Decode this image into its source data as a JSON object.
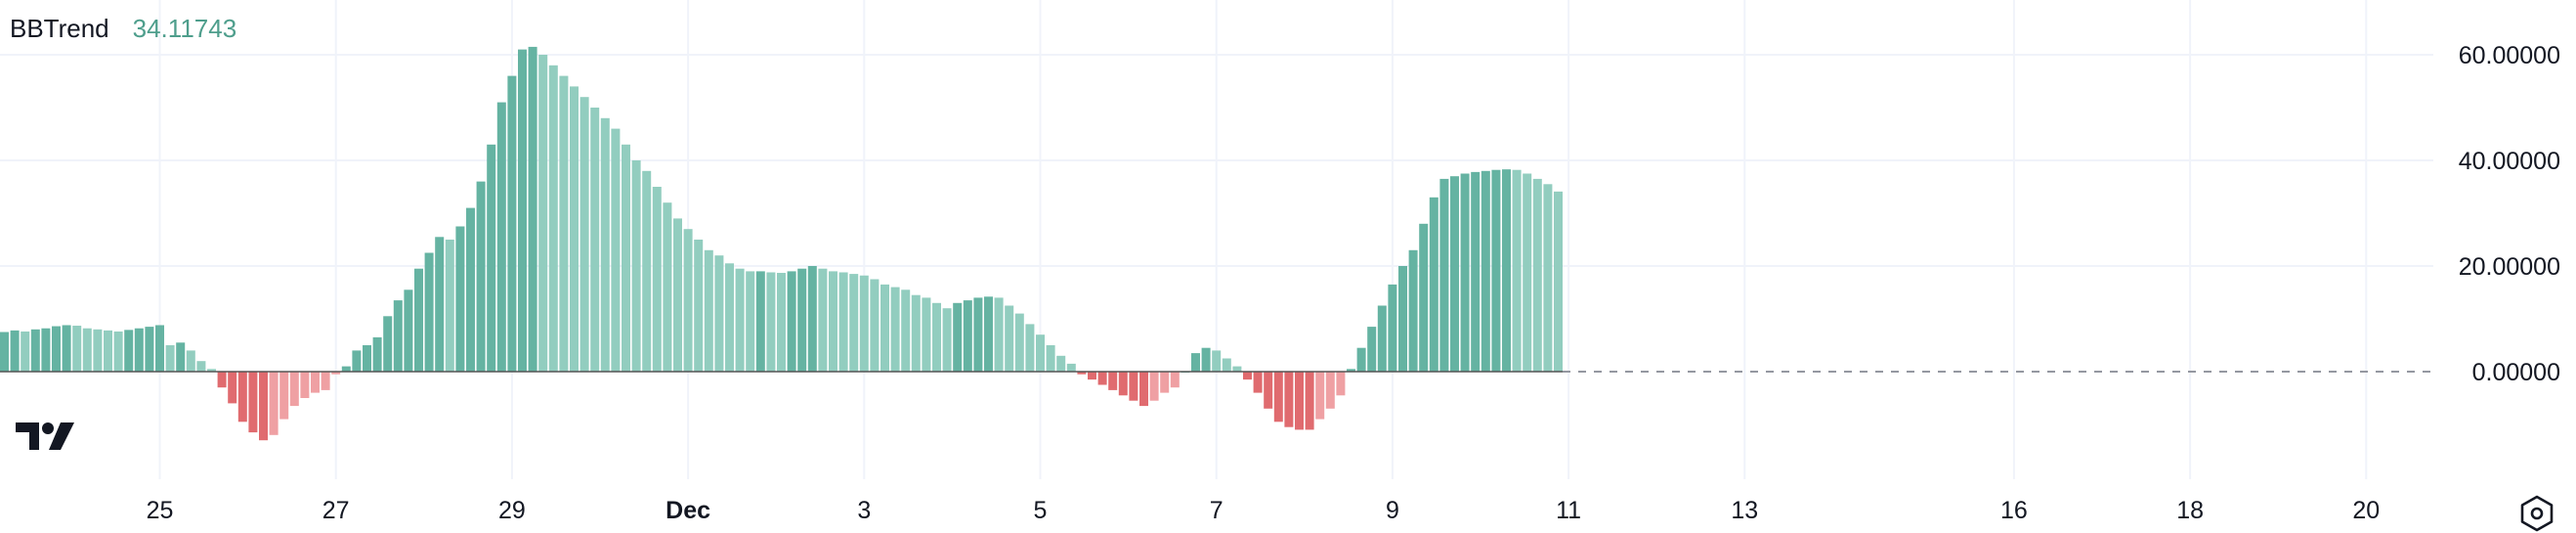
{
  "legend": {
    "name": "BBTrend",
    "value": "34.11743"
  },
  "colors": {
    "up_strong": "#65b3a2",
    "up_weak": "#92cdbf",
    "down_strong": "#e06b6f",
    "down_weak": "#efa0a3",
    "grid": "#f0f3fa",
    "text": "#131722",
    "zero_line": "#9598a1"
  },
  "chart_data": {
    "type": "bar",
    "y_ticks": [
      "60.00000",
      "40.00000",
      "20.00000",
      "0.00000"
    ],
    "ylim": [
      -15,
      66
    ],
    "x_ticks": [
      {
        "label": "25",
        "index": 15
      },
      {
        "label": "27",
        "index": 32
      },
      {
        "label": "29",
        "index": 49
      },
      {
        "label": "Dec",
        "index": 66,
        "bold": true
      },
      {
        "label": "3",
        "index": 83
      },
      {
        "label": "5",
        "index": 100
      },
      {
        "label": "7",
        "index": 117
      },
      {
        "label": "9",
        "index": 134
      },
      {
        "label": "11",
        "index": 151
      },
      {
        "label": "13",
        "index": 168
      },
      {
        "label": "16",
        "index": 194
      },
      {
        "label": "18",
        "index": 211
      },
      {
        "label": "20",
        "index": 228
      }
    ],
    "values": [
      7.5,
      7.8,
      7.6,
      8.0,
      8.2,
      8.6,
      8.8,
      8.7,
      8.2,
      8.0,
      7.8,
      7.6,
      7.9,
      8.2,
      8.5,
      8.8,
      5.0,
      5.5,
      4.0,
      2.0,
      0.5,
      -3,
      -6,
      -9.5,
      -11.5,
      -13,
      -12,
      -9,
      -6.5,
      -5,
      -4,
      -3.5,
      -0.5,
      1.0,
      4.0,
      5.0,
      6.5,
      10.5,
      13.5,
      15.5,
      19.5,
      22.5,
      25.5,
      25.0,
      27.5,
      31.0,
      36.0,
      43.0,
      51.0,
      56.0,
      61.0,
      61.5,
      60.0,
      58.0,
      56.0,
      54.0,
      52.0,
      50.0,
      48.0,
      46.0,
      43.0,
      40.0,
      38.0,
      35.0,
      32.0,
      29.0,
      27.0,
      25.0,
      23.0,
      22.0,
      20.5,
      19.5,
      19.0,
      19.0,
      18.8,
      18.7,
      19.0,
      19.5,
      20.0,
      19.5,
      19.0,
      18.8,
      18.5,
      18.2,
      17.5,
      16.5,
      16.0,
      15.5,
      14.5,
      14.0,
      13.0,
      12.0,
      13.0,
      13.5,
      14.0,
      14.2,
      14.0,
      12.5,
      11.0,
      9.0,
      7.0,
      5.0,
      3.0,
      1.5,
      -0.5,
      -1.5,
      -2.5,
      -3.5,
      -4.5,
      -5.5,
      -6.5,
      -5.5,
      -4.0,
      -3.0,
      0,
      3.5,
      4.5,
      4.0,
      2.5,
      1.0,
      -1.5,
      -4.0,
      -7.0,
      -9.5,
      -10.5,
      -11.0,
      -11.0,
      -9.0,
      -7.0,
      -4.5,
      0.5,
      4.5,
      8.5,
      12.5,
      16.5,
      20.0,
      23.0,
      28.0,
      33.0,
      36.5,
      37.0,
      37.5,
      37.8,
      38.0,
      38.2,
      38.3,
      38.2,
      37.5,
      36.5,
      35.5,
      34.1
    ]
  },
  "settings_icon": "settings-hexagon-icon",
  "logo_icon": "tradingview-logo-icon"
}
